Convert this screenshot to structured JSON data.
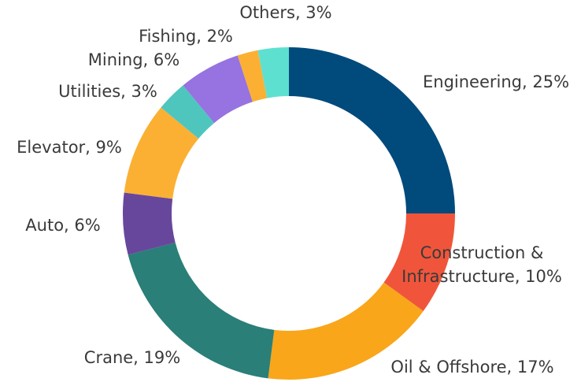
{
  "chart_data": {
    "type": "donut",
    "categories": [
      "Engineering",
      "Construction & Infrastructure",
      "Oil & Offshore",
      "Crane",
      "Auto",
      "Elevator",
      "Utilities",
      "Mining",
      "Fishing",
      "Others"
    ],
    "values": [
      25,
      10,
      17,
      19,
      6,
      9,
      3,
      6,
      2,
      3
    ],
    "value_labels": [
      [
        "Engineering, 25%"
      ],
      [
        "Construction &",
        "Infrastructure, 10%"
      ],
      [
        "Oil & Offshore, 17%"
      ],
      [
        "Crane, 19%"
      ],
      [
        "Auto, 6%"
      ],
      [
        "Elevator, 9%"
      ],
      [
        "Utilities, 3%"
      ],
      [
        "Mining, 6%"
      ],
      [
        "Fishing, 2%"
      ],
      [
        "Others, 3%"
      ]
    ],
    "colors": [
      "#004a7c",
      "#f0553b",
      "#f9a61a",
      "#2a7f78",
      "#67479c",
      "#fbb033",
      "#4fc6bd",
      "#9673e0",
      "#fbb033",
      "#5ee0d0"
    ]
  }
}
